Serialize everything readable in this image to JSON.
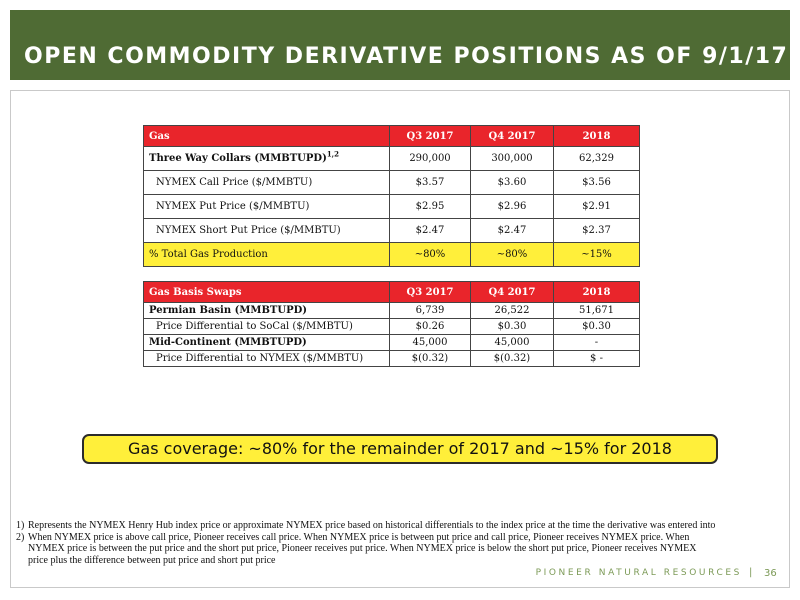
{
  "title": "OPEN COMMODITY DERIVATIVE POSITIONS AS OF 9/1/17",
  "gas_table": {
    "headers": [
      "Gas",
      "Q3 2017",
      "Q4 2017",
      "2018"
    ],
    "rows": [
      {
        "label": "Three Way Collars (MMBTUPD)",
        "sup": "1,2",
        "values": [
          "290,000",
          "300,000",
          "62,329"
        ]
      },
      {
        "label": "NYMEX Call Price ($/MMBTU)",
        "values": [
          "$3.57",
          "$3.60",
          "$3.56"
        ]
      },
      {
        "label": "NYMEX Put Price ($/MMBTU)",
        "values": [
          "$2.95",
          "$2.96",
          "$2.91"
        ]
      },
      {
        "label": "NYMEX Short Put Price ($/MMBTU)",
        "values": [
          "$2.47",
          "$2.47",
          "$2.37"
        ]
      },
      {
        "label": "% Total Gas Production",
        "values": [
          "~80%",
          "~80%",
          "~15%"
        ]
      }
    ]
  },
  "basis_table": {
    "headers": [
      "Gas Basis Swaps",
      "Q3 2017",
      "Q4 2017",
      "2018"
    ],
    "rows": [
      {
        "label": "Permian Basin (MMBTUPD)",
        "values": [
          "6,739",
          "26,522",
          "51,671"
        ]
      },
      {
        "label": "Price Differential to SoCal ($/MMBTU)",
        "values": [
          "$0.26",
          "$0.30",
          "$0.30"
        ]
      },
      {
        "label": "Mid-Continent (MMBTUPD)",
        "values": [
          "45,000",
          "45,000",
          "-"
        ]
      },
      {
        "label": "Price Differential to NYMEX ($/MMBTU)",
        "values": [
          "$(0.32)",
          "$(0.32)",
          "$ -"
        ]
      }
    ]
  },
  "coverage_text": "Gas coverage: ~80% for the remainder of 2017 and ~15% for 2018",
  "footnotes": [
    {
      "num": "1)",
      "text": "Represents the NYMEX Henry Hub index price or approximate NYMEX price based on historical differentials to the index price at the time the derivative was entered into"
    },
    {
      "num": "2)",
      "text": "When NYMEX price is above call price, Pioneer receives call price. When NYMEX price is between put price and call price, Pioneer receives NYMEX price. When NYMEX price is between the put price and the short put price, Pioneer receives put price. When NYMEX price is below the short put price, Pioneer receives NYMEX price plus the difference between put price and short put price"
    }
  ],
  "footer": {
    "brand": "PIONEER NATURAL RESOURCES",
    "separator": "|",
    "page": "36"
  },
  "colors": {
    "title_bar": "#4f6b34",
    "header_red": "#e9252b",
    "highlight_yellow": "#ffef3a",
    "brand_green": "#7c9a57"
  }
}
